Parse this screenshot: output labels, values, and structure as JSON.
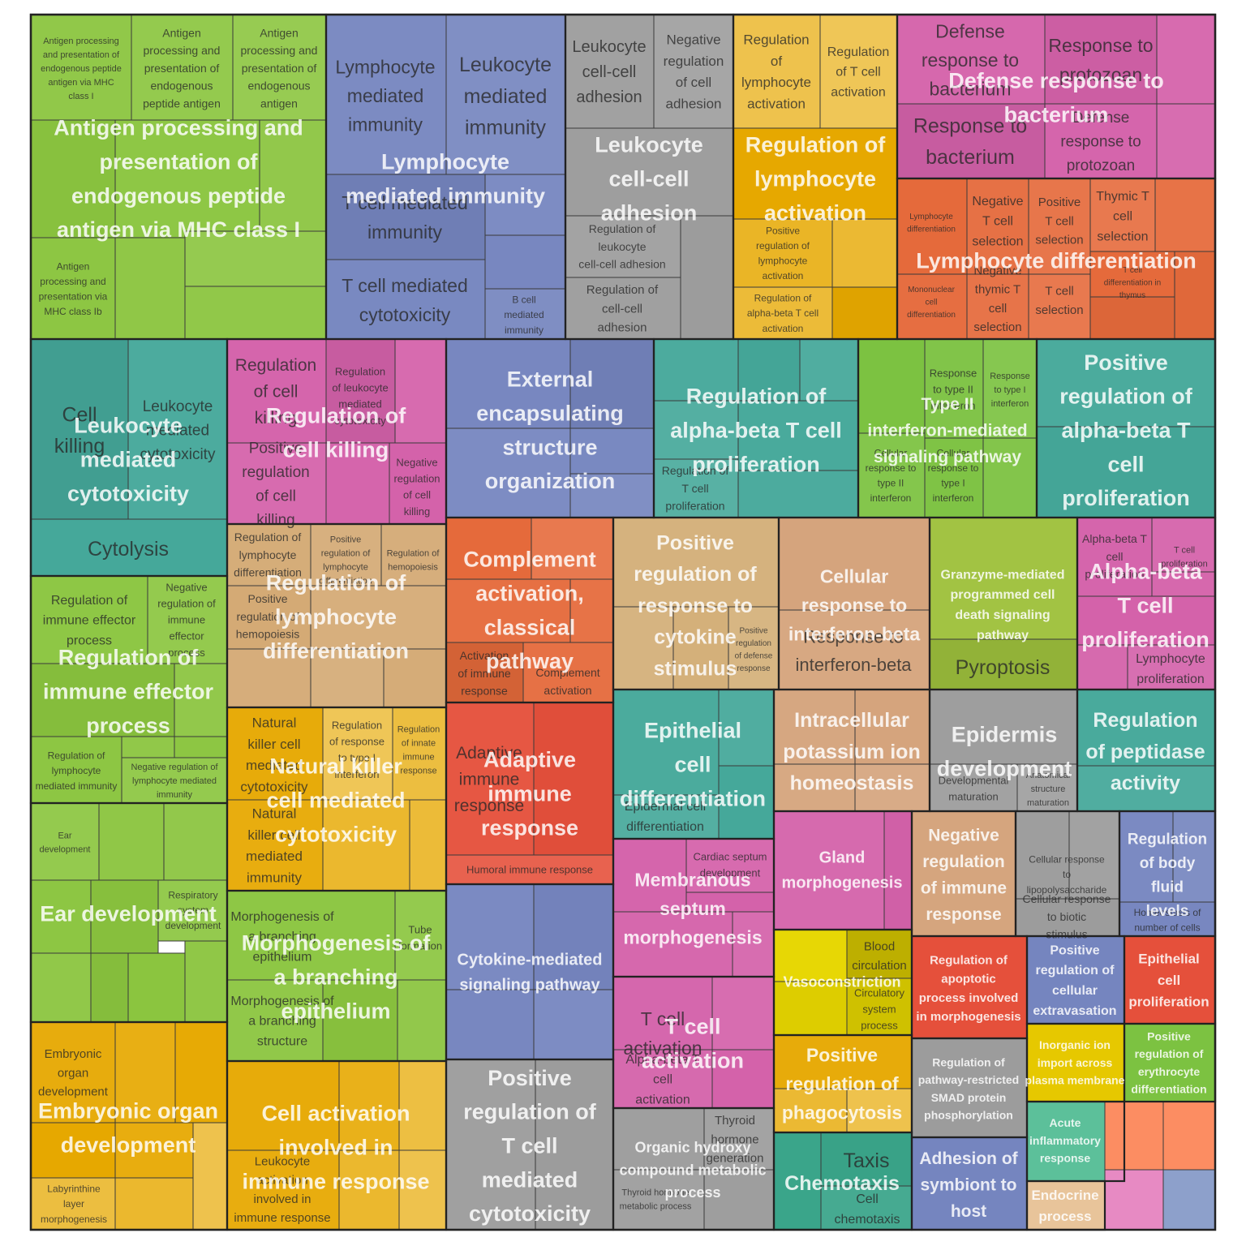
{
  "chart_data": {
    "type": "treemap",
    "title": "",
    "groups": [
      {
        "name": "Antigen processing and presentation of endogenous peptide antigen via MHC class I",
        "color": "#8bc53f",
        "subgroups": [
          "Antigen processing and presentation of endogenous peptide antigen via MHC class I",
          "Antigen processing and presentation of endogenous peptide antigen",
          "Antigen processing and presentation of endogenous antigen",
          "Antigen processing and presentation via MHC class Ib"
        ]
      },
      {
        "name": "Lymphocyte mediated immunity",
        "color": "#7585bf",
        "subgroups": [
          "Lymphocyte mediated immunity",
          "Leukocyte mediated immunity",
          "T cell mediated immunity",
          "T cell mediated cytotoxicity",
          "B cell mediated immunity"
        ]
      },
      {
        "name": "Leukocyte cell-cell adhesion",
        "color": "#9c9c9c",
        "subgroups": [
          "Leukocyte cell-cell adhesion",
          "Negative regulation of cell adhesion",
          "Regulation of leukocyte cell-cell adhesion",
          "Regulation of cell-cell adhesion"
        ]
      },
      {
        "name": "Regulation of lymphocyte activation",
        "color": "#e6a800",
        "subgroups": [
          "Regulation of lymphocyte activation",
          "Regulation of T cell activation",
          "Positive regulation of lymphocyte activation",
          "Regulation of alpha-beta T cell activation"
        ]
      },
      {
        "name": "Defense response to bacterium",
        "color": "#d462aa",
        "subgroups": [
          "Defense response to bacterium",
          "Response to protozoan",
          "Response to bacterium",
          "Defense response to protozoan"
        ]
      },
      {
        "name": "Lymphocyte differentiation",
        "color": "#e56a3b",
        "subgroups": [
          "Lymphocyte differentiation",
          "Negative T cell selection",
          "Positive T cell selection",
          "Thymic T cell selection",
          "Mononuclear cell differentiation",
          "Negative thymic T cell selection",
          "T cell selection",
          "T cell differentiation in thymus"
        ]
      },
      {
        "name": "Leukocyte mediated cytotoxicity",
        "color": "#45a89a",
        "subgroups": [
          "Cell killing",
          "Leukocyte mediated cytotoxicity",
          "Cytolysis"
        ]
      },
      {
        "name": "Regulation of cell killing",
        "color": "#d462aa",
        "subgroups": [
          "Regulation of cell killing",
          "Regulation of leukocyte mediated cytotoxicity",
          "Positive regulation of cell killing",
          "Negative regulation of cell killing"
        ]
      },
      {
        "name": "External encapsulating structure organization",
        "color": "#7585bf",
        "subgroups": []
      },
      {
        "name": "Regulation of alpha-beta T cell proliferation",
        "color": "#45a89a",
        "subgroups": [
          "Regulation of T cell proliferation"
        ]
      },
      {
        "name": "Type II interferon-mediated signaling pathway",
        "color": "#7cc241",
        "subgroups": [
          "Response to type II interferon",
          "Response to type I interferon",
          "Cellular response to type II interferon",
          "Cellular response to type I interferon"
        ]
      },
      {
        "name": "Positive regulation of alpha-beta T cell proliferation",
        "color": "#45a89a",
        "subgroups": []
      },
      {
        "name": "Regulation of immune effector process",
        "color": "#8bc53f",
        "subgroups": [
          "Regulation of immune effector process",
          "Negative regulation of immune effector process",
          "Regulation of lymphocyte mediated immunity",
          "Negative regulation of lymphocyte mediated immunity"
        ]
      },
      {
        "name": "Regulation of lymphocyte differentiation",
        "color": "#d4aa75",
        "subgroups": [
          "Regulation of lymphocyte differentiation",
          "Positive regulation of lymphocyte differentiation",
          "Regulation of hemopoiesis",
          "Positive regulation of hemopoiesis"
        ]
      },
      {
        "name": "Complement activation, classical pathway",
        "color": "#e56a3b",
        "subgroups": [
          "Activation of immune response",
          "Complement activation"
        ]
      },
      {
        "name": "Positive regulation of response to cytokine stimulus",
        "color": "#d4b07a",
        "subgroups": [
          "Positive regulation of defense response"
        ]
      },
      {
        "name": "Cellular response to interferon-beta",
        "color": "#d4a27a",
        "subgroups": [
          "Response to interferon-beta"
        ]
      },
      {
        "name": "Granzyme-mediated programmed cell death signaling pathway",
        "color": "#9fc13d",
        "subgroups": [
          "Pyroptosis"
        ]
      },
      {
        "name": "Alpha-beta T cell proliferation",
        "color": "#d462aa",
        "subgroups": [
          "Alpha-beta T cell proliferation",
          "T cell proliferation",
          "Lymphocyte proliferation"
        ]
      },
      {
        "name": "Ear development",
        "color": "#8bc53f",
        "subgroups": [
          "Ear development",
          "Respiratory system development"
        ]
      },
      {
        "name": "Natural killer cell mediated cytotoxicity",
        "color": "#e6a800",
        "subgroups": [
          "Natural killer cell mediated cytotoxicity",
          "Regulation of response to type I interferon",
          "Regulation of innate immune response",
          "Natural killer cell mediated immunity"
        ]
      },
      {
        "name": "Adaptive immune response",
        "color": "#e5503b",
        "subgroups": [
          "Adaptive immune response",
          "Humoral immune response"
        ]
      },
      {
        "name": "Epithelial cell differentiation",
        "color": "#45a89a",
        "subgroups": [
          "Epidermal cell differentiation"
        ]
      },
      {
        "name": "Intracellular potassium ion homeostasis",
        "color": "#d4a27a",
        "subgroups": []
      },
      {
        "name": "Epidermis development",
        "color": "#9c9c9c",
        "subgroups": [
          "Developmental maturation",
          "Anatomical structure maturation"
        ]
      },
      {
        "name": "Regulation of peptidase activity",
        "color": "#45a89a",
        "subgroups": []
      },
      {
        "name": "Morphogenesis of a branching epithelium",
        "color": "#8bc53f",
        "subgroups": [
          "Morphogenesis of a branching epithelium",
          "Tube formation",
          "Morphogenesis of a branching structure"
        ]
      },
      {
        "name": "Cytokine-mediated signaling pathway",
        "color": "#7585bf",
        "subgroups": []
      },
      {
        "name": "Membranous septum morphogenesis",
        "color": "#d462aa",
        "subgroups": [
          "Cardiac septum development"
        ]
      },
      {
        "name": "Gland morphogenesis",
        "color": "#d462aa",
        "subgroups": []
      },
      {
        "name": "Negative regulation of immune response",
        "color": "#d4a27a",
        "subgroups": []
      },
      {
        "name": "Cellular response to lipopolysaccharide",
        "color": "#9c9c9c",
        "subgroups": [
          "Cellular response to lipopolysaccharide",
          "Cellular response to biotic stimulus"
        ]
      },
      {
        "name": "Regulation of body fluid levels",
        "color": "#7585bf",
        "subgroups": [
          "Homeostasis of number of cells"
        ]
      },
      {
        "name": "Embryonic organ development",
        "color": "#e6a800",
        "subgroups": [
          "Embryonic organ development",
          "Labyrinthine layer morphogenesis"
        ]
      },
      {
        "name": "Cell activation involved in immune response",
        "color": "#e6a800",
        "subgroups": [
          "Leukocyte activation involved in immune response"
        ]
      },
      {
        "name": "Positive regulation of T cell mediated cytotoxicity",
        "color": "#9c9c9c",
        "subgroups": []
      },
      {
        "name": "T cell activation",
        "color": "#d462aa",
        "subgroups": [
          "T cell activation",
          "Alpha-beta T cell activation"
        ]
      },
      {
        "name": "Organic hydroxy compound metabolic process",
        "color": "#9c9c9c",
        "subgroups": [
          "Thyroid hormone generation",
          "Thyroid hormone metabolic process"
        ]
      },
      {
        "name": "Vasoconstriction",
        "color": "#e6d600",
        "subgroups": [
          "Blood circulation",
          "Circulatory system process"
        ]
      },
      {
        "name": "Positive regulation of phagocytosis",
        "color": "#e6a800",
        "subgroups": []
      },
      {
        "name": "Chemotaxis",
        "color": "#3aa58a",
        "subgroups": [
          "Taxis",
          "Cell chemotaxis"
        ]
      },
      {
        "name": "Regulation of apoptotic process involved in morphogenesis",
        "color": "#e5503b",
        "subgroups": []
      },
      {
        "name": "Regulation of pathway-restricted SMAD protein phosphorylation",
        "color": "#9c9c9c",
        "subgroups": []
      },
      {
        "name": "Adhesion of symbiont to host",
        "color": "#7585bf",
        "subgroups": []
      },
      {
        "name": "Positive regulation of cellular extravasation",
        "color": "#7585bf",
        "subgroups": []
      },
      {
        "name": "Epithelial cell proliferation",
        "color": "#e5503b",
        "subgroups": []
      },
      {
        "name": "Inorganic ion import across plasma membrane",
        "color": "#e6c800",
        "subgroups": []
      },
      {
        "name": "Positive regulation of erythrocyte differentiation",
        "color": "#7cc241",
        "subgroups": []
      },
      {
        "name": "Acute inflammatory response",
        "color": "#5cc09a",
        "subgroups": []
      },
      {
        "name": "Endocrine process",
        "color": "#e8c49a",
        "subgroups": []
      }
    ]
  }
}
